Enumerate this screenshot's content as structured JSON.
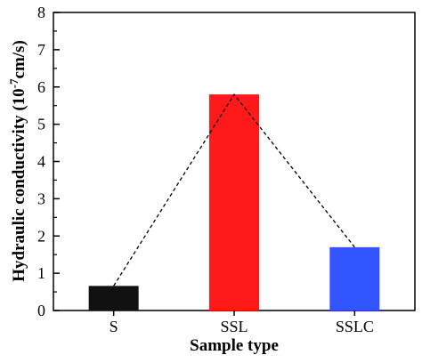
{
  "chart_data": {
    "type": "bar",
    "title": "",
    "xlabel": "Sample type",
    "ylabel": {
      "prefix": "Hydraulic conductivity (10",
      "exponent": "-7",
      "suffix": "cm/s)"
    },
    "categories": [
      "S",
      "SSL",
      "SSLC"
    ],
    "values": [
      0.66,
      5.8,
      1.7
    ],
    "colors": [
      "#111111",
      "#ff1a1a",
      "#3355ff"
    ],
    "ylim": [
      0,
      8
    ],
    "yticks": [
      "0",
      "1",
      "2",
      "3",
      "4",
      "5",
      "6",
      "7",
      "8"
    ],
    "connector_line": "dashed",
    "grid": false,
    "legend": "none"
  }
}
